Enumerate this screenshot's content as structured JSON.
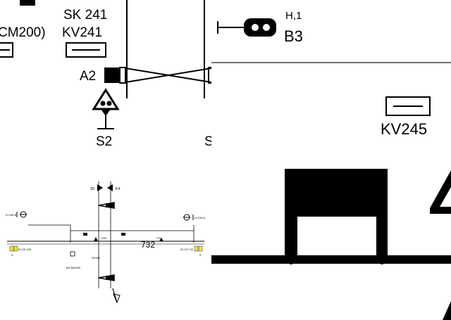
{
  "panel_tl": {
    "labels": {
      "sk241": "SK 241",
      "cm200": "CM200)",
      "kv241": "KV241",
      "a2": "A2",
      "s2": "S2",
      "s_cut": "S"
    }
  },
  "panel_tr": {
    "labels": {
      "h1": "H,1",
      "b3": "B3",
      "kv245": "KV245"
    }
  },
  "panel_bl": {
    "labels": {
      "left_signal": "KI 248 B",
      "right_signal": "KI 246 A",
      "left_code": "00 00 126",
      "right_code": "00 127 00",
      "track_num_1": "732",
      "track_num_2": "732",
      "center_sm": "S50",
      "left_s": "S",
      "right_s": "S",
      "sub_left": "AK Bus340",
      "sub_mid": "SK340",
      "sig_top_left": "S5",
      "sig_top_right": "K4"
    }
  },
  "panel_br": {
    "labels": {}
  }
}
